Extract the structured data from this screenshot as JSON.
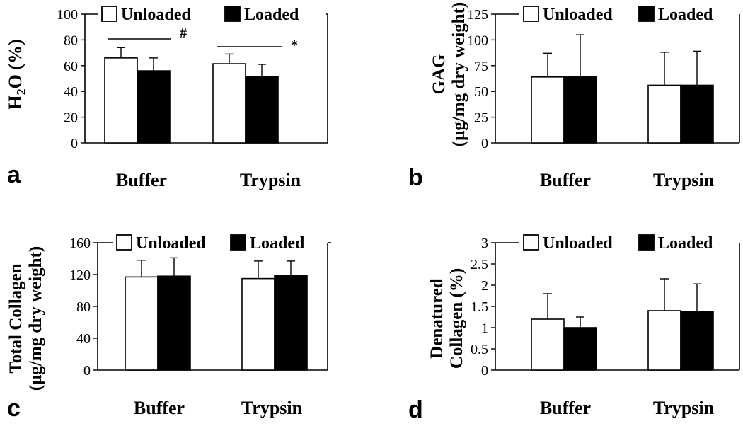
{
  "figure": {
    "colors": {
      "unloaded": "#ffffff",
      "loaded": "#000000",
      "axis": "#000000"
    }
  },
  "chart_data": [
    {
      "type": "bar",
      "panel_label": "a",
      "ylabel_parts": [
        "H",
        "2",
        "O (%)"
      ],
      "categories": [
        "Buffer",
        "Trypsin"
      ],
      "legend": [
        "Unloaded",
        "Loaded"
      ],
      "series": [
        {
          "name": "Unloaded",
          "values": [
            66,
            61.5
          ],
          "errors": [
            8,
            7.5
          ]
        },
        {
          "name": "Loaded",
          "values": [
            56,
            51.5
          ],
          "errors": [
            10,
            9.5
          ]
        }
      ],
      "ylim": [
        0,
        100
      ],
      "yticks": [
        "0",
        "20",
        "40",
        "60",
        "80",
        "100"
      ],
      "annotations": [
        {
          "category": 0,
          "symbol": "#"
        },
        {
          "category": 1,
          "symbol": "*"
        }
      ]
    },
    {
      "type": "bar",
      "panel_label": "b",
      "ylabel_lines": [
        "GAG",
        "(μg/mg dry weight)"
      ],
      "categories": [
        "Buffer",
        "Trypsin"
      ],
      "legend": [
        "Unloaded",
        "Loaded"
      ],
      "series": [
        {
          "name": "Unloaded",
          "values": [
            64,
            56
          ],
          "errors": [
            23,
            32
          ]
        },
        {
          "name": "Loaded",
          "values": [
            64,
            56
          ],
          "errors": [
            41,
            33
          ]
        }
      ],
      "ylim": [
        0,
        125
      ],
      "yticks": [
        "0",
        "25",
        "50",
        "75",
        "100",
        "125"
      ]
    },
    {
      "type": "bar",
      "panel_label": "c",
      "ylabel_lines": [
        "Total Collagen",
        "(μg/mg dry weight)"
      ],
      "categories": [
        "Buffer",
        "Trypsin"
      ],
      "legend": [
        "Unloaded",
        "Loaded"
      ],
      "series": [
        {
          "name": "Unloaded",
          "values": [
            117,
            115
          ],
          "errors": [
            21,
            22
          ]
        },
        {
          "name": "Loaded",
          "values": [
            118,
            119
          ],
          "errors": [
            23,
            18
          ]
        }
      ],
      "ylim": [
        0,
        160
      ],
      "yticks": [
        "0",
        "40",
        "80",
        "120",
        "160"
      ]
    },
    {
      "type": "bar",
      "panel_label": "d",
      "ylabel_lines": [
        "Denatured",
        "Collagen (%)"
      ],
      "categories": [
        "Buffer",
        "Trypsin"
      ],
      "legend": [
        "Unloaded",
        "Loaded"
      ],
      "series": [
        {
          "name": "Unloaded",
          "values": [
            1.2,
            1.4
          ],
          "errors": [
            0.6,
            0.75
          ]
        },
        {
          "name": "Loaded",
          "values": [
            1.0,
            1.38
          ],
          "errors": [
            0.25,
            0.65
          ]
        }
      ],
      "ylim": [
        0,
        3
      ],
      "yticks": [
        "0",
        "0.5",
        "1",
        "1.5",
        "2",
        "2.5",
        "3"
      ]
    }
  ]
}
